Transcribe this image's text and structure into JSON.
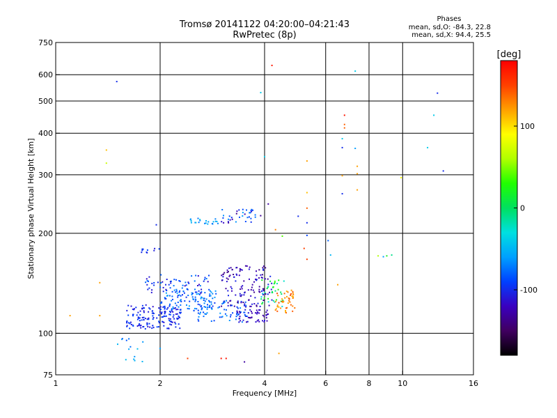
{
  "header": {
    "title_line1": "Tromsø 20141122 04:20:00–04:21:43",
    "title_line2": "RwPretec (8p)"
  },
  "stats": {
    "heading": "Phases",
    "line_o": "mean, sd,O: -84.3, 22.8",
    "line_x": "mean, sd,X:  94.4, 25.5"
  },
  "colorbar": {
    "unit_label": "[deg]",
    "ticks": [
      {
        "label": "100",
        "value": 100
      },
      {
        "label": "0",
        "value": 0
      },
      {
        "label": "-100",
        "value": -100
      }
    ],
    "range": [
      -180,
      180
    ],
    "colors": [
      "#000000",
      "#400060",
      "#3a00c0",
      "#0040ff",
      "#00a0ff",
      "#00e0e0",
      "#00e060",
      "#20ff00",
      "#b0ff00",
      "#ffff00",
      "#ffa000",
      "#ff4000",
      "#ff0000"
    ]
  },
  "chart_data": {
    "type": "scatter",
    "xlabel": "Frequency [MHz]",
    "ylabel": "Stationary phase Virtual Height [km]",
    "xscale": "log",
    "yscale": "log",
    "xlim": [
      1,
      16
    ],
    "ylim": [
      75,
      750
    ],
    "grid": true,
    "x_ticks": [
      {
        "label": "1",
        "value": 1
      },
      {
        "label": "2",
        "value": 2
      },
      {
        "label": "4",
        "value": 4
      },
      {
        "label": "6",
        "value": 6
      },
      {
        "label": "8",
        "value": 8
      },
      {
        "label": "10",
        "value": 10
      },
      {
        "label": "16",
        "value": 16
      }
    ],
    "x_grid": [
      2,
      4,
      6,
      8,
      10
    ],
    "y_ticks": [
      {
        "label": "750",
        "value": 750
      },
      {
        "label": "600",
        "value": 600
      },
      {
        "label": "500",
        "value": 500
      },
      {
        "label": "400",
        "value": 400
      },
      {
        "label": "300",
        "value": 300
      },
      {
        "label": "200",
        "value": 200
      },
      {
        "label": "100",
        "value": 100
      },
      {
        "label": "75",
        "value": 75
      }
    ],
    "y_grid": [
      600,
      500,
      400,
      300,
      200,
      100
    ],
    "clusters": [
      {
        "f": [
          1.6,
          2.3
        ],
        "h": [
          103,
          122
        ],
        "phase": [
          -115,
          -85
        ],
        "n": 160
      },
      {
        "f": [
          2.0,
          2.9
        ],
        "h": [
          118,
          136
        ],
        "phase": [
          -100,
          -55
        ],
        "n": 110
      },
      {
        "f": [
          1.8,
          2.8
        ],
        "h": [
          132,
          150
        ],
        "phase": [
          -120,
          -70
        ],
        "n": 60
      },
      {
        "f": [
          2.5,
          3.6
        ],
        "h": [
          108,
          126
        ],
        "phase": [
          -95,
          -60
        ],
        "n": 70
      },
      {
        "f": [
          3.0,
          4.2
        ],
        "h": [
          120,
          160
        ],
        "phase": [
          -140,
          -100
        ],
        "n": 130
      },
      {
        "f": [
          3.3,
          4.1
        ],
        "h": [
          108,
          118
        ],
        "phase": [
          -130,
          -105
        ],
        "n": 50
      },
      {
        "f": [
          3.9,
          4.6
        ],
        "h": [
          120,
          145
        ],
        "phase": [
          -40,
          40
        ],
        "n": 35
      },
      {
        "f": [
          4.3,
          4.9
        ],
        "h": [
          115,
          135
        ],
        "phase": [
          110,
          150
        ],
        "n": 45
      },
      {
        "f": [
          2.4,
          3.0
        ],
        "h": [
          213,
          222
        ],
        "phase": [
          -75,
          -40
        ],
        "n": 22
      },
      {
        "f": [
          3.0,
          3.9
        ],
        "h": [
          215,
          236
        ],
        "phase": [
          -135,
          -60
        ],
        "n": 36
      },
      {
        "f": [
          1.75,
          2.0
        ],
        "h": [
          174,
          180
        ],
        "phase": [
          -110,
          -90
        ],
        "n": 10
      },
      {
        "f": [
          1.5,
          1.8
        ],
        "h": [
          82,
          97
        ],
        "phase": [
          -90,
          -40
        ],
        "n": 14
      }
    ],
    "points": [
      {
        "f": 1.1,
        "h": 113,
        "phase": 120
      },
      {
        "f": 1.34,
        "h": 113,
        "phase": 120
      },
      {
        "f": 1.34,
        "h": 142,
        "phase": 120
      },
      {
        "f": 1.4,
        "h": 356,
        "phase": 110
      },
      {
        "f": 1.4,
        "h": 325,
        "phase": 70
      },
      {
        "f": 1.5,
        "h": 572,
        "phase": -100
      },
      {
        "f": 1.95,
        "h": 212,
        "phase": -100
      },
      {
        "f": 2.0,
        "h": 90,
        "phase": -60
      },
      {
        "f": 2.4,
        "h": 84,
        "phase": 150
      },
      {
        "f": 3.0,
        "h": 84,
        "phase": 170
      },
      {
        "f": 3.1,
        "h": 84,
        "phase": 170
      },
      {
        "f": 3.5,
        "h": 82,
        "phase": -130
      },
      {
        "f": 3.9,
        "h": 530,
        "phase": -40
      },
      {
        "f": 4.0,
        "h": 340,
        "phase": -40
      },
      {
        "f": 4.1,
        "h": 245,
        "phase": -130
      },
      {
        "f": 4.2,
        "h": 640,
        "phase": 170
      },
      {
        "f": 4.3,
        "h": 205,
        "phase": 130
      },
      {
        "f": 4.4,
        "h": 87,
        "phase": 120
      },
      {
        "f": 4.5,
        "h": 196,
        "phase": 40
      },
      {
        "f": 5.0,
        "h": 225,
        "phase": -100
      },
      {
        "f": 5.3,
        "h": 330,
        "phase": 120
      },
      {
        "f": 5.3,
        "h": 265,
        "phase": 110
      },
      {
        "f": 5.3,
        "h": 238,
        "phase": 140
      },
      {
        "f": 5.3,
        "h": 215,
        "phase": -100
      },
      {
        "f": 5.3,
        "h": 197,
        "phase": -90
      },
      {
        "f": 5.3,
        "h": 167,
        "phase": 150
      },
      {
        "f": 5.2,
        "h": 180,
        "phase": 150
      },
      {
        "f": 6.1,
        "h": 190,
        "phase": -80
      },
      {
        "f": 6.2,
        "h": 172,
        "phase": -50
      },
      {
        "f": 6.5,
        "h": 140,
        "phase": 120
      },
      {
        "f": 6.8,
        "h": 453,
        "phase": 170
      },
      {
        "f": 6.8,
        "h": 425,
        "phase": 140
      },
      {
        "f": 6.8,
        "h": 415,
        "phase": 140
      },
      {
        "f": 6.7,
        "h": 385,
        "phase": -40
      },
      {
        "f": 6.7,
        "h": 362,
        "phase": -100
      },
      {
        "f": 6.7,
        "h": 298,
        "phase": 120
      },
      {
        "f": 6.7,
        "h": 263,
        "phase": -100
      },
      {
        "f": 7.3,
        "h": 615,
        "phase": -40
      },
      {
        "f": 7.3,
        "h": 360,
        "phase": -60
      },
      {
        "f": 7.4,
        "h": 318,
        "phase": 120
      },
      {
        "f": 7.4,
        "h": 302,
        "phase": 120
      },
      {
        "f": 7.4,
        "h": 270,
        "phase": 120
      },
      {
        "f": 8.5,
        "h": 171,
        "phase": 60
      },
      {
        "f": 8.8,
        "h": 170,
        "phase": -60
      },
      {
        "f": 9.0,
        "h": 171,
        "phase": 20
      },
      {
        "f": 9.3,
        "h": 172,
        "phase": -10
      },
      {
        "f": 9.9,
        "h": 294,
        "phase": 90
      },
      {
        "f": 11.8,
        "h": 362,
        "phase": -40
      },
      {
        "f": 12.3,
        "h": 453,
        "phase": -40
      },
      {
        "f": 12.6,
        "h": 528,
        "phase": -100
      },
      {
        "f": 13.1,
        "h": 308,
        "phase": -100
      }
    ]
  }
}
